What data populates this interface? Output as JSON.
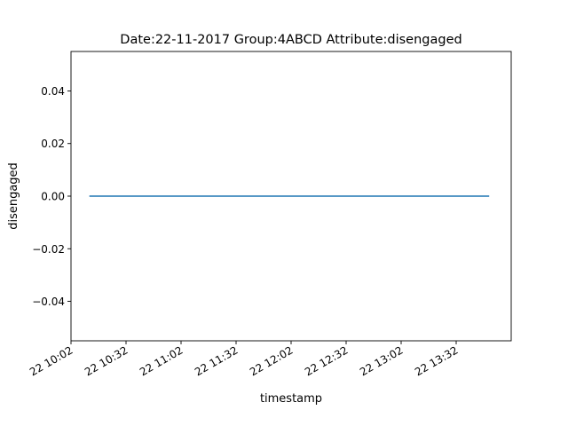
{
  "chart_data": {
    "type": "line",
    "title": "Date:22-11-2017  Group:4ABCD Attribute:disengaged",
    "xlabel": "timestamp",
    "ylabel": "disengaged",
    "x_scale": "time",
    "xlim": [
      "2017-11-22 10:02",
      "2017-11-22 14:02"
    ],
    "ylim": [
      -0.055,
      0.055
    ],
    "x_ticks": [
      "2017-11-22 10:02",
      "2017-11-22 10:32",
      "2017-11-22 11:02",
      "2017-11-22 11:32",
      "2017-11-22 12:02",
      "2017-11-22 12:32",
      "2017-11-22 13:02",
      "2017-11-22 13:32"
    ],
    "x_tick_labels": [
      "22 10:02",
      "22 10:32",
      "22 11:02",
      "22 11:32",
      "22 12:02",
      "22 12:32",
      "22 13:02",
      "22 13:32"
    ],
    "y_ticks": [
      -0.04,
      -0.02,
      0.0,
      0.02,
      0.04
    ],
    "y_tick_labels": [
      "−0.04",
      "−0.02",
      "0.00",
      "0.02",
      "0.04"
    ],
    "grid": false,
    "legend": "none",
    "series": [
      {
        "color": "#1f77b4",
        "x": [
          "2017-11-22 10:12",
          "2017-11-22 13:50"
        ],
        "y": [
          0,
          0
        ]
      }
    ]
  }
}
